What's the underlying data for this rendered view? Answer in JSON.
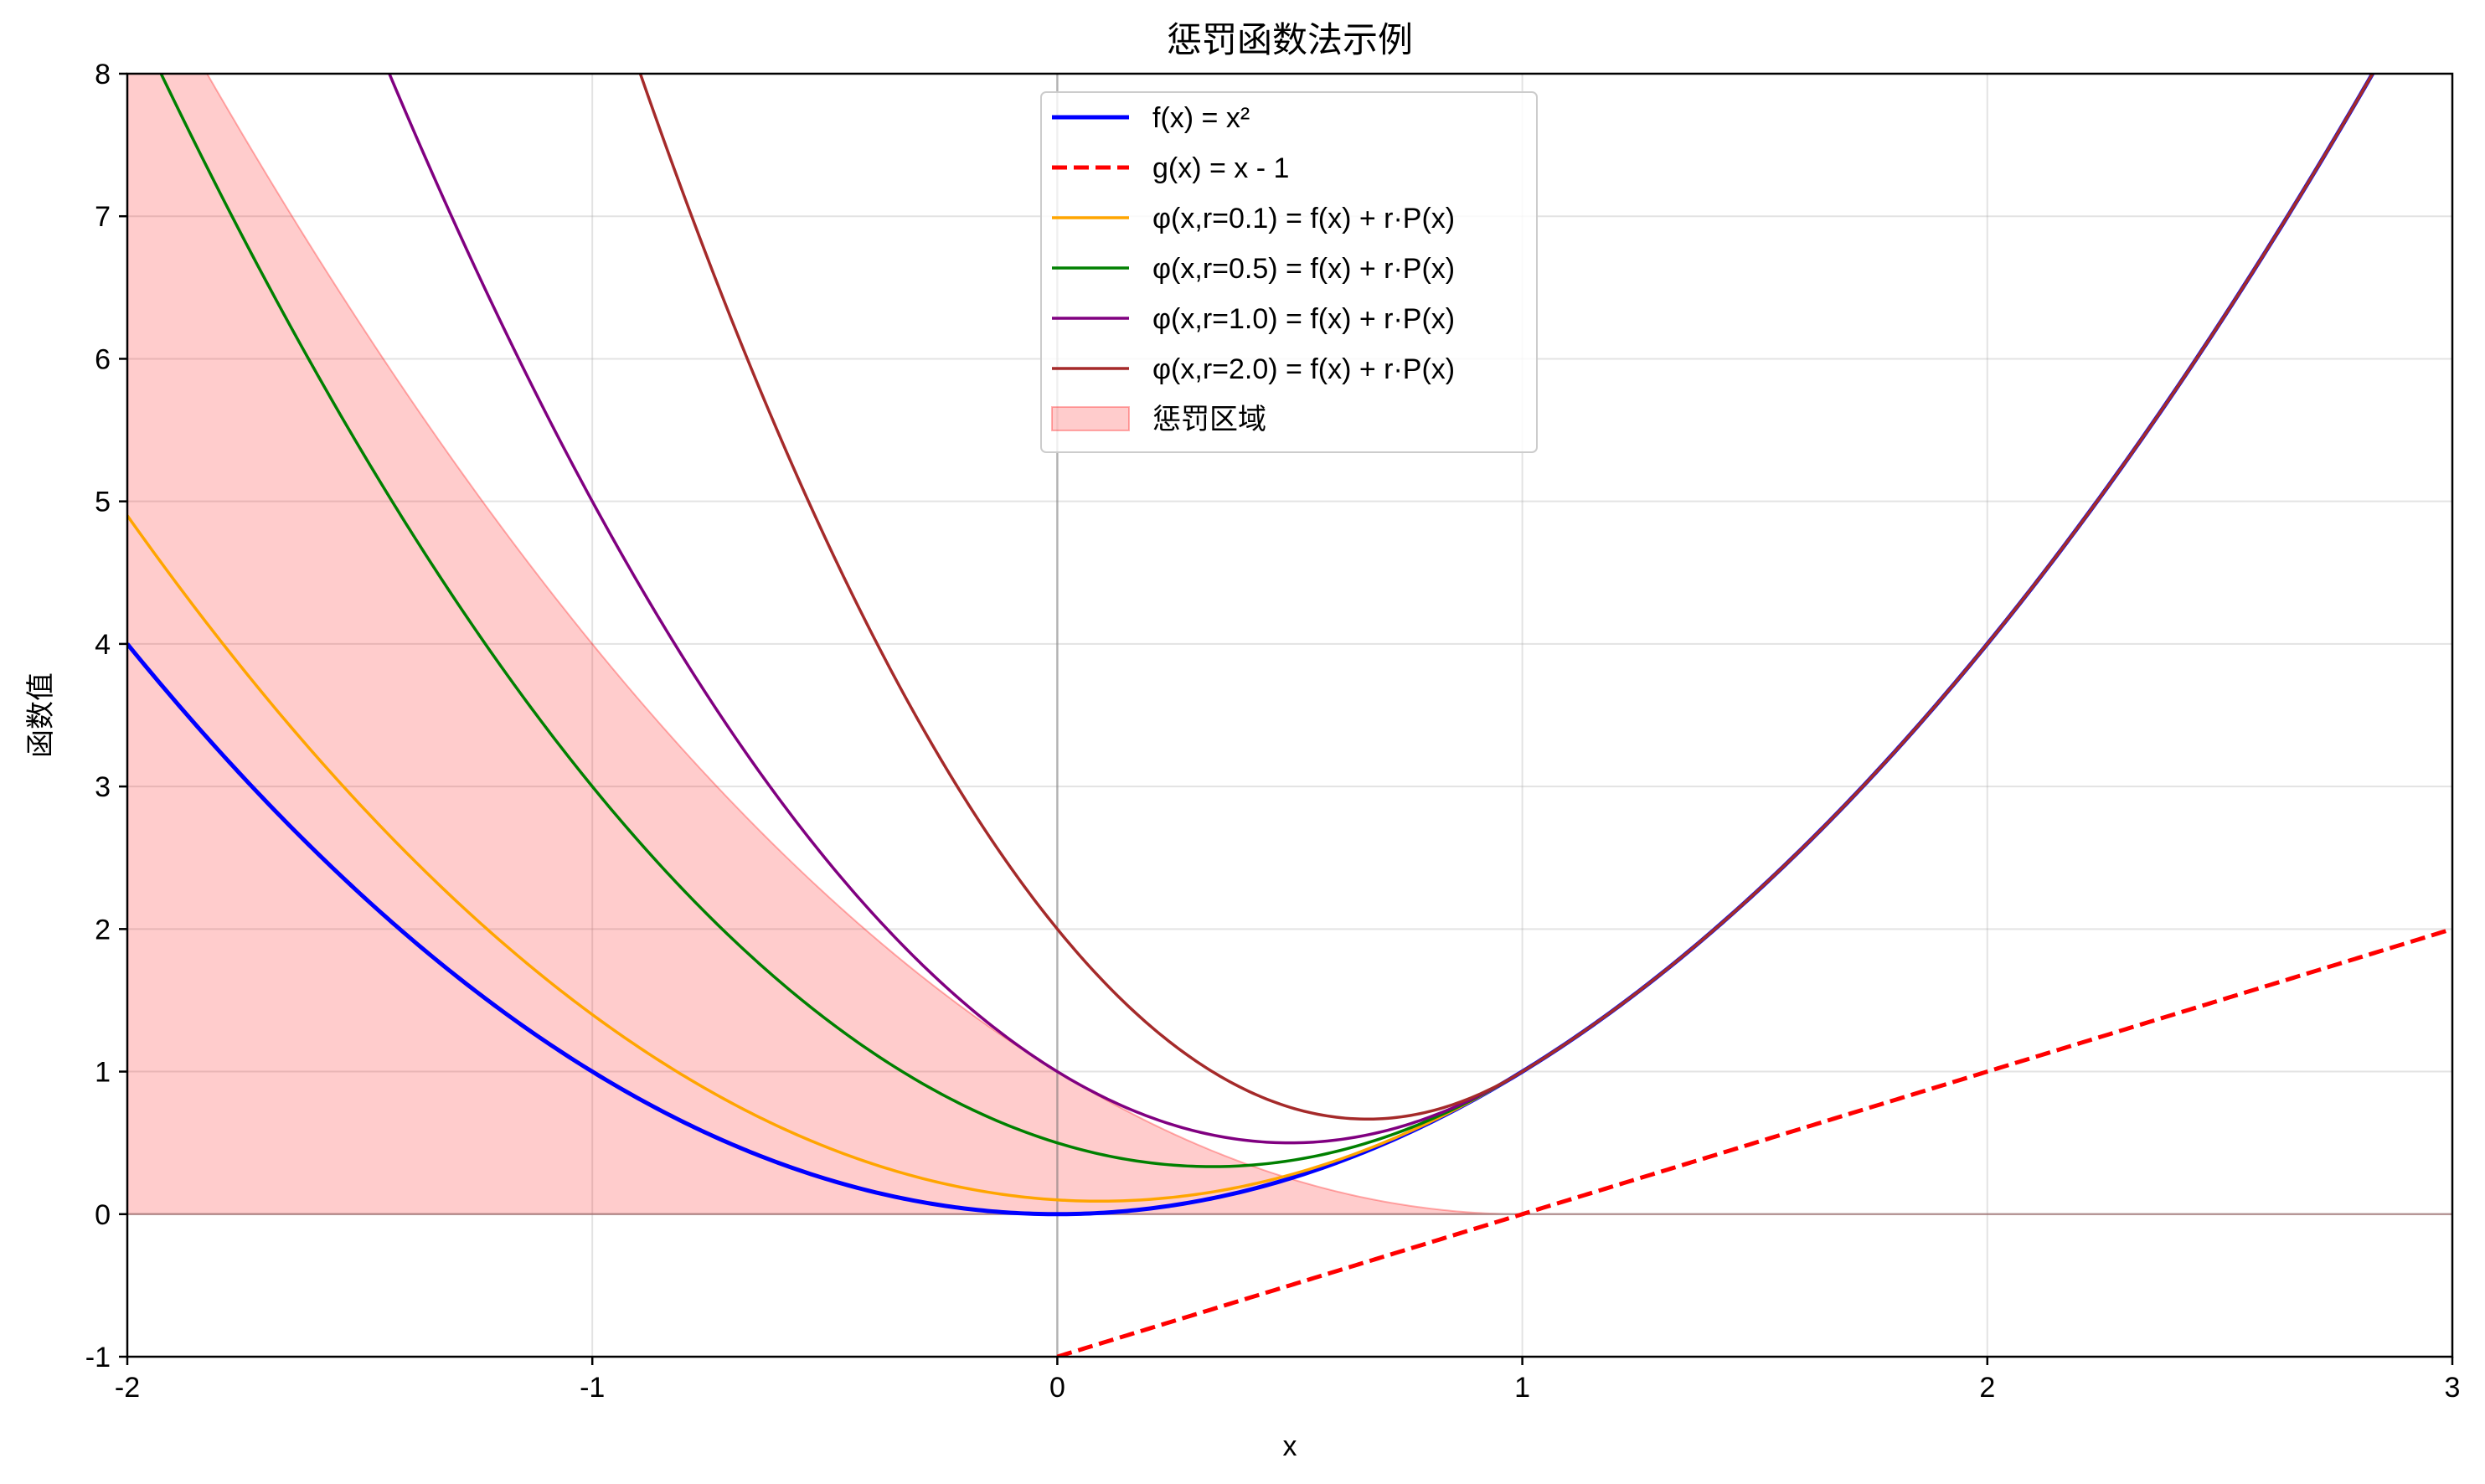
{
  "chart_data": {
    "type": "line",
    "title": "惩罚函数法示例",
    "xlabel": "x",
    "ylabel": "函数值",
    "xlim": [
      -2,
      3
    ],
    "ylim": [
      -1,
      8
    ],
    "xticks": [
      -2,
      -1,
      0,
      1,
      2,
      3
    ],
    "yticks": [
      -1,
      0,
      1,
      2,
      3,
      4,
      5,
      6,
      7,
      8
    ],
    "grid": true,
    "legend_position": "top-center",
    "reference_lines": {
      "x": 0,
      "y": 0
    },
    "series": [
      {
        "name": "f(x) = x²",
        "formula": "x^2",
        "color": "#0000ff",
        "style": "solid",
        "weight": "thick"
      },
      {
        "name": "g(x) = x - 1",
        "formula": "x - 1",
        "color": "#ff0000",
        "style": "dashed",
        "weight": "thick",
        "x_range": [
          0,
          3
        ]
      },
      {
        "name": "φ(x,r=0.1) = f(x) + r·P(x)",
        "formula": "x^2 + r*max(0,1-x)^2",
        "r": 0.1,
        "color": "#ffa500",
        "style": "solid",
        "weight": "normal"
      },
      {
        "name": "φ(x,r=0.5) = f(x) + r·P(x)",
        "formula": "x^2 + r*max(0,1-x)^2",
        "r": 0.5,
        "color": "#008000",
        "style": "solid",
        "weight": "normal"
      },
      {
        "name": "φ(x,r=1.0) = f(x) + r·P(x)",
        "formula": "x^2 + r*max(0,1-x)^2",
        "r": 1.0,
        "color": "#800080",
        "style": "solid",
        "weight": "normal"
      },
      {
        "name": "φ(x,r=2.0) = f(x) + r·P(x)",
        "formula": "x^2 + r*max(0,1-x)^2",
        "r": 2.0,
        "color": "#a52a2a",
        "style": "solid",
        "weight": "normal"
      }
    ],
    "fill": {
      "name": "惩罚区域",
      "formula": "max(0,1-x)^2",
      "color": "#ff0000",
      "opacity": 0.2
    }
  }
}
